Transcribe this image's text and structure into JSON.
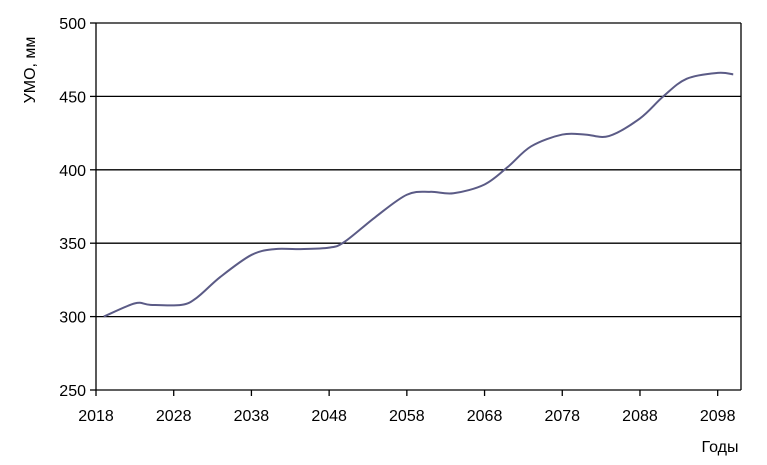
{
  "chart_data": {
    "type": "line",
    "title": "",
    "xlabel": "Годы",
    "ylabel": "УМО, мм",
    "xlim": [
      2018,
      2101
    ],
    "ylim": [
      250,
      500
    ],
    "x_ticks": [
      2018,
      2028,
      2038,
      2048,
      2058,
      2068,
      2078,
      2088,
      2098
    ],
    "y_ticks": [
      250,
      300,
      350,
      400,
      450,
      500
    ],
    "grid": "horizontal",
    "line_color": "#5b5b86",
    "series": [
      {
        "x": [
          2019,
          2023,
          2025,
          2029,
          2031,
          2034,
          2038,
          2041,
          2044,
          2048,
          2050,
          2054,
          2058,
          2061,
          2064,
          2068,
          2071,
          2074,
          2078,
          2081,
          2084,
          2088,
          2091,
          2094,
          2098,
          2100
        ],
        "values": [
          300,
          309,
          308,
          308,
          313,
          327,
          342,
          346,
          346,
          347,
          351,
          368,
          383,
          385,
          384,
          390,
          402,
          416,
          424,
          424,
          423,
          435,
          450,
          462,
          466,
          465
        ]
      }
    ]
  }
}
